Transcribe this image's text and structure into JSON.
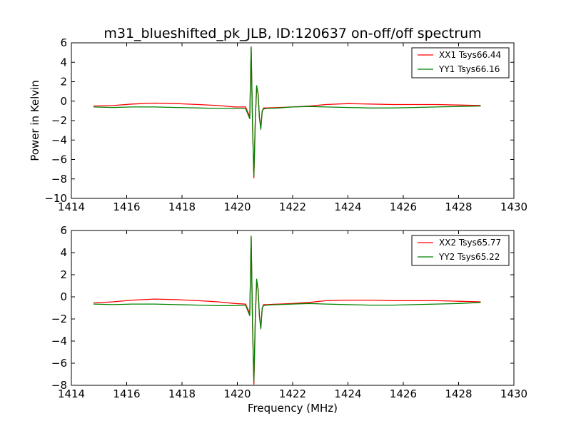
{
  "title": "m31_blueshifted_pk_JLB, ID:120637 on-off/off spectrum",
  "colors": {
    "xx": "#ff0000",
    "yy": "#008000"
  },
  "chart_data": [
    {
      "type": "line",
      "xlabel": "",
      "ylabel": "Power in Kelvin",
      "xlim": [
        1414,
        1430
      ],
      "ylim": [
        -10,
        6
      ],
      "xticks": [
        1414,
        1416,
        1418,
        1420,
        1422,
        1424,
        1426,
        1428,
        1430
      ],
      "yticks": [
        -10,
        -8,
        -6,
        -4,
        -2,
        0,
        2,
        4,
        6
      ],
      "legend_position": "top-right",
      "series": [
        {
          "name": "XX1 Tsys66.44",
          "color": "#ff0000",
          "x": [
            1414.8,
            1415.5,
            1416.2,
            1417.0,
            1417.8,
            1418.6,
            1419.3,
            1419.9,
            1420.3,
            1420.45,
            1420.5,
            1420.55,
            1420.6,
            1420.65,
            1420.7,
            1420.75,
            1420.8,
            1420.85,
            1420.9,
            1420.95,
            1421.05,
            1421.5,
            1422.0,
            1422.6,
            1423.2,
            1424.0,
            1424.8,
            1425.6,
            1426.4,
            1427.2,
            1428.0,
            1428.8
          ],
          "y": [
            -0.5,
            -0.45,
            -0.3,
            -0.2,
            -0.25,
            -0.35,
            -0.45,
            -0.6,
            -0.6,
            -1.6,
            5.5,
            -2.5,
            -7.9,
            -2.0,
            1.5,
            0.8,
            -1.8,
            -2.6,
            -1.0,
            -0.7,
            -0.7,
            -0.65,
            -0.6,
            -0.5,
            -0.35,
            -0.25,
            -0.3,
            -0.35,
            -0.35,
            -0.35,
            -0.4,
            -0.45
          ]
        },
        {
          "name": "YY1 Tsys66.16",
          "color": "#008000",
          "x": [
            1414.8,
            1415.5,
            1416.2,
            1417.0,
            1417.8,
            1418.6,
            1419.3,
            1419.9,
            1420.3,
            1420.45,
            1420.5,
            1420.55,
            1420.6,
            1420.65,
            1420.7,
            1420.75,
            1420.8,
            1420.85,
            1420.9,
            1420.95,
            1421.05,
            1421.5,
            1422.0,
            1422.6,
            1423.2,
            1424.0,
            1424.8,
            1425.6,
            1426.4,
            1427.2,
            1428.0,
            1428.8
          ],
          "y": [
            -0.6,
            -0.65,
            -0.6,
            -0.6,
            -0.65,
            -0.7,
            -0.75,
            -0.75,
            -0.75,
            -1.8,
            5.6,
            -2.4,
            -7.7,
            -1.9,
            1.6,
            0.7,
            -1.7,
            -2.9,
            -1.0,
            -0.8,
            -0.75,
            -0.7,
            -0.6,
            -0.55,
            -0.6,
            -0.65,
            -0.7,
            -0.7,
            -0.65,
            -0.6,
            -0.55,
            -0.5
          ]
        }
      ]
    },
    {
      "type": "line",
      "xlabel": "Frequency (MHz)",
      "ylabel": "",
      "xlim": [
        1414,
        1430
      ],
      "ylim": [
        -8,
        6
      ],
      "xticks": [
        1414,
        1416,
        1418,
        1420,
        1422,
        1424,
        1426,
        1428,
        1430
      ],
      "yticks": [
        -8,
        -6,
        -4,
        -2,
        0,
        2,
        4,
        6
      ],
      "legend_position": "top-right",
      "series": [
        {
          "name": "XX2 Tsys65.77",
          "color": "#ff0000",
          "x": [
            1414.8,
            1415.5,
            1416.2,
            1417.0,
            1417.8,
            1418.6,
            1419.3,
            1419.9,
            1420.3,
            1420.45,
            1420.5,
            1420.55,
            1420.6,
            1420.65,
            1420.7,
            1420.75,
            1420.8,
            1420.85,
            1420.9,
            1420.95,
            1421.05,
            1421.5,
            1422.0,
            1422.6,
            1423.2,
            1424.0,
            1424.8,
            1425.6,
            1426.4,
            1427.2,
            1428.0,
            1428.8
          ],
          "y": [
            -0.55,
            -0.45,
            -0.3,
            -0.2,
            -0.25,
            -0.35,
            -0.45,
            -0.6,
            -0.65,
            -1.5,
            5.4,
            -2.6,
            -7.9,
            -2.1,
            1.5,
            0.7,
            -1.8,
            -2.8,
            -1.0,
            -0.7,
            -0.7,
            -0.65,
            -0.6,
            -0.5,
            -0.35,
            -0.3,
            -0.3,
            -0.35,
            -0.35,
            -0.35,
            -0.4,
            -0.45
          ]
        },
        {
          "name": "YY2 Tsys65.22",
          "color": "#008000",
          "x": [
            1414.8,
            1415.5,
            1416.2,
            1417.0,
            1417.8,
            1418.6,
            1419.3,
            1419.9,
            1420.3,
            1420.45,
            1420.5,
            1420.55,
            1420.6,
            1420.65,
            1420.7,
            1420.75,
            1420.8,
            1420.85,
            1420.9,
            1420.95,
            1421.05,
            1421.5,
            1422.0,
            1422.6,
            1423.2,
            1424.0,
            1424.8,
            1425.6,
            1426.4,
            1427.2,
            1428.0,
            1428.8
          ],
          "y": [
            -0.65,
            -0.7,
            -0.65,
            -0.65,
            -0.7,
            -0.75,
            -0.8,
            -0.8,
            -0.75,
            -1.7,
            5.5,
            -2.3,
            -7.6,
            -1.8,
            1.6,
            0.6,
            -1.7,
            -2.9,
            -1.0,
            -0.8,
            -0.75,
            -0.7,
            -0.65,
            -0.6,
            -0.65,
            -0.7,
            -0.75,
            -0.75,
            -0.7,
            -0.65,
            -0.6,
            -0.5
          ]
        }
      ]
    }
  ]
}
